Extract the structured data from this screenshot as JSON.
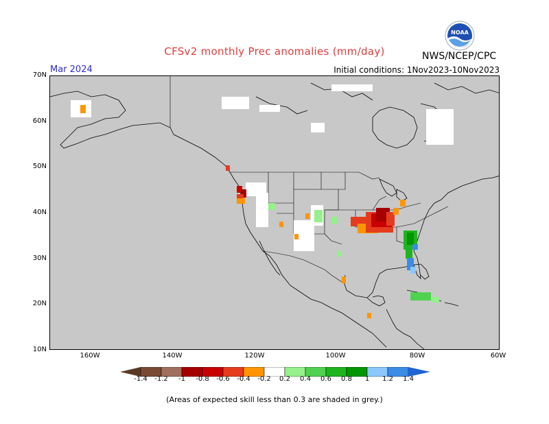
{
  "title": "CFSv2 monthly Prec anomalies (mm/day)",
  "agency": "NWS/NCEP/CPC",
  "logo_text": "NOAA",
  "month": "Mar 2024",
  "initial_conditions": "Initial conditions: 1Nov2023-10Nov2023",
  "lat_labels": [
    "70N",
    "60N",
    "50N",
    "40N",
    "30N",
    "20N",
    "10N"
  ],
  "lon_labels": [
    "160W",
    "140W",
    "120W",
    "100W",
    "80W",
    "60W"
  ],
  "colorbar": {
    "labels": [
      "-1.4",
      "-1.2",
      "-1",
      "-0.8",
      "-0.6",
      "-0.4",
      "-0.2",
      "0.2",
      "0.4",
      "0.6",
      "0.8",
      "1",
      "1.2",
      "1.4"
    ],
    "colors": [
      "#7a4a35",
      "#a06f5e",
      "#c89486",
      "#a50000",
      "#c80000",
      "#e63c1e",
      "#ff9600",
      "#ffffff",
      "#96f08c",
      "#50d250",
      "#1eb41e",
      "#009600",
      "#8cc8ff",
      "#3c8ce6",
      "#1e64d2"
    ]
  },
  "note": "(Areas of expected skill less than 0.3 are shaded in grey.)",
  "colors": {
    "skill_mask": "#c8c8c8",
    "title": "#e03c3c",
    "month": "#2a2ad0"
  }
}
